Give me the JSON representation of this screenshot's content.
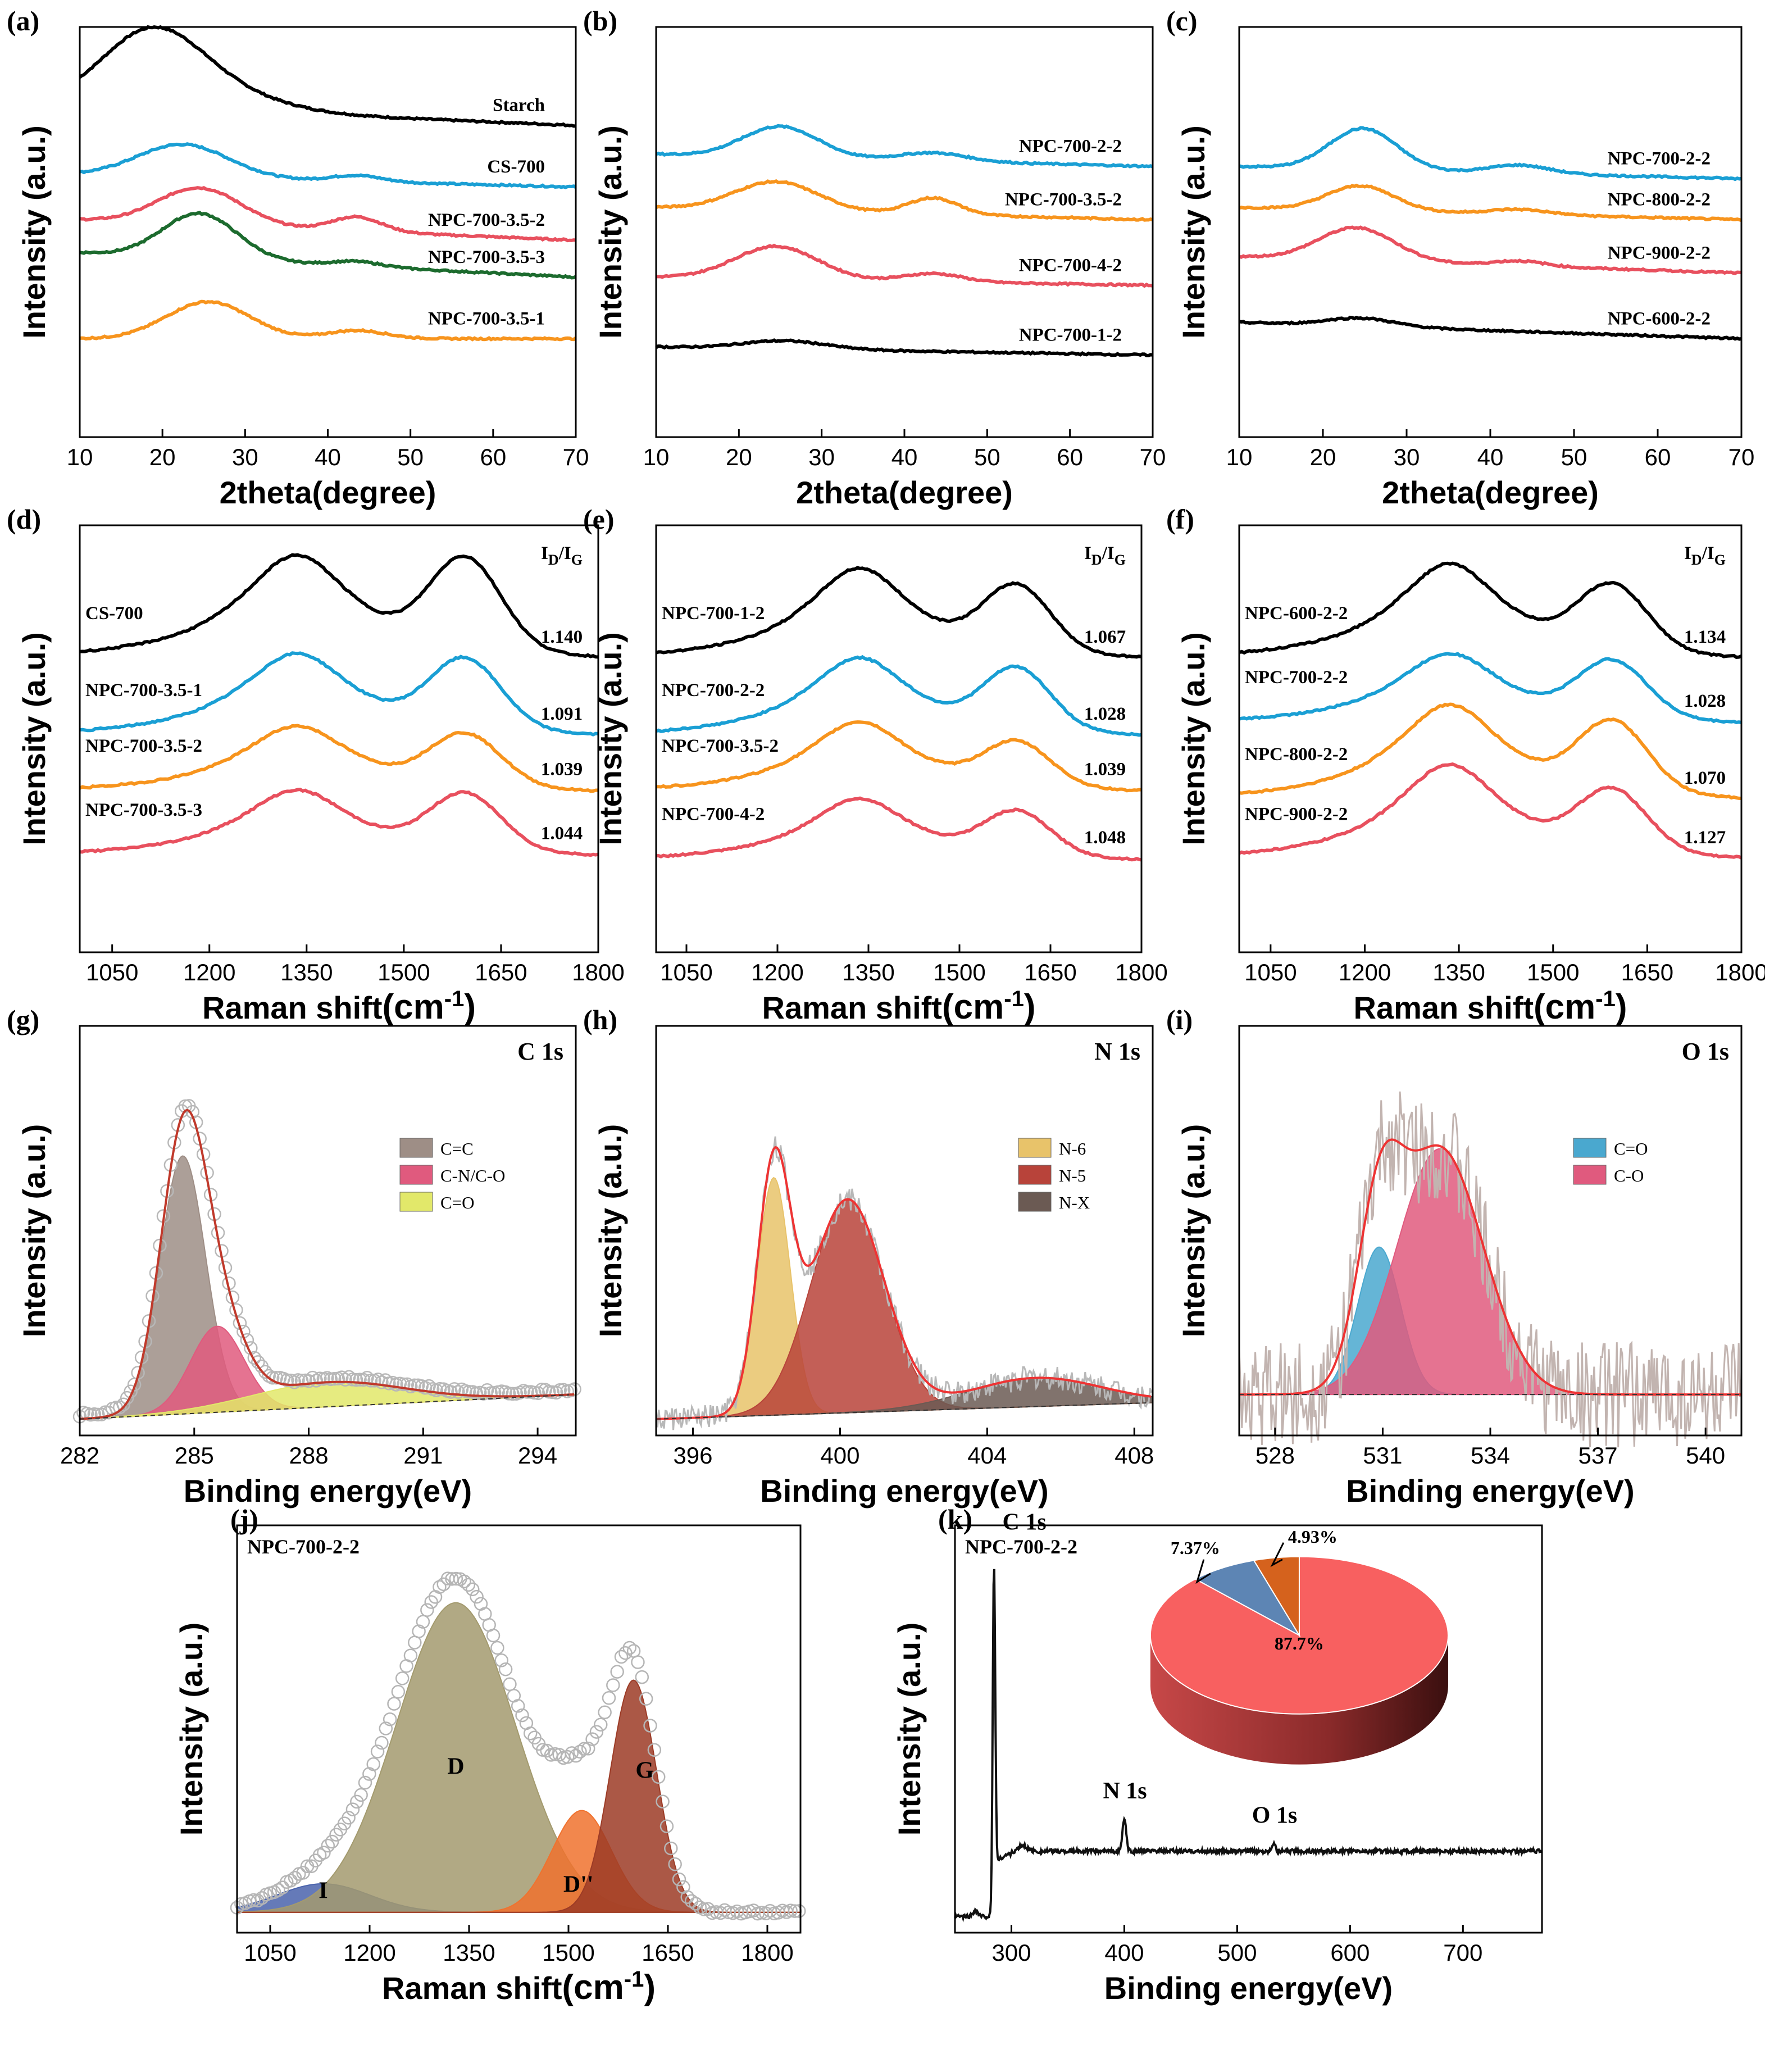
{
  "figure": {
    "panel_count": 11
  },
  "chart_data": [
    {
      "id": "a",
      "panel_label": "(a)",
      "type": "line",
      "xlabel": "2theta(degree)",
      "ylabel": "Intensity (a.u.)",
      "xlim": [
        10,
        70
      ],
      "xticks": [
        10,
        20,
        30,
        40,
        50,
        60,
        70
      ],
      "ylim": [
        0,
        1
      ],
      "series": [
        {
          "name": "Starch",
          "color": "#000000",
          "offset": 0.76,
          "peaks": [
            [
              18.5,
              0.16,
              6
            ],
            [
              25,
              0.05,
              8
            ]
          ],
          "decay": 0.05
        },
        {
          "name": "CS-700",
          "color": "#1a9fd4",
          "offset": 0.61,
          "peaks": [
            [
              22.5,
              0.08,
              5.5
            ],
            [
              43.5,
              0.015,
              3
            ]
          ],
          "decay": 0.03
        },
        {
          "name": "NPC-700-3.5-2",
          "color": "#e8505e",
          "offset": 0.48,
          "peaks": [
            [
              24.5,
              0.09,
              5
            ],
            [
              43.5,
              0.035,
              3
            ]
          ],
          "decay": 0.05
        },
        {
          "name": "NPC-700-3.5-3",
          "color": "#1c6b2e",
          "offset": 0.39,
          "peaks": [
            [
              24.5,
              0.11,
              4.5
            ],
            [
              43.5,
              0.012,
              3
            ]
          ],
          "decay": 0.06
        },
        {
          "name": "NPC-700-3.5-1",
          "color": "#f7941d",
          "offset": 0.24,
          "peaks": [
            [
              25.5,
              0.09,
              5
            ],
            [
              43.5,
              0.02,
              3.5
            ]
          ],
          "decay": 0.0
        }
      ]
    },
    {
      "id": "b",
      "panel_label": "(b)",
      "type": "line",
      "xlabel": "2theta(degree)",
      "ylabel": "Intensity (a.u.)",
      "xlim": [
        10,
        70
      ],
      "xticks": [
        10,
        20,
        30,
        40,
        50,
        60,
        70
      ],
      "ylim": [
        0,
        1
      ],
      "series": [
        {
          "name": "NPC-700-2-2",
          "color": "#1a9fd4",
          "offset": 0.66,
          "peaks": [
            [
              25,
              0.075,
              4.5
            ],
            [
              43.5,
              0.02,
              4
            ]
          ],
          "decay": 0.03
        },
        {
          "name": "NPC-700-3.5-2",
          "color": "#f7941d",
          "offset": 0.53,
          "peaks": [
            [
              24.5,
              0.07,
              5
            ],
            [
              43.5,
              0.04,
              3
            ]
          ],
          "decay": 0.03
        },
        {
          "name": "NPC-700-4-2",
          "color": "#e8505e",
          "offset": 0.37,
          "peaks": [
            [
              24.5,
              0.08,
              5
            ],
            [
              43.5,
              0.02,
              3.5
            ]
          ],
          "decay": 0.02
        },
        {
          "name": "NPC-700-1-2",
          "color": "#000000",
          "offset": 0.2,
          "peaks": [
            [
              25.5,
              0.02,
              5
            ]
          ],
          "decay": 0.02
        }
      ]
    },
    {
      "id": "c",
      "panel_label": "(c)",
      "type": "line",
      "xlabel": "2theta(degree)",
      "ylabel": "Intensity (a.u.)",
      "xlim": [
        10,
        70
      ],
      "xticks": [
        10,
        20,
        30,
        40,
        50,
        60,
        70
      ],
      "ylim": [
        0,
        1
      ],
      "series": [
        {
          "name": "NPC-700-2-2",
          "color": "#1a9fd4",
          "offset": 0.63,
          "peaks": [
            [
              24.8,
              0.1,
              4
            ],
            [
              43.5,
              0.02,
              3.5
            ]
          ],
          "decay": 0.03
        },
        {
          "name": "NPC-800-2-2",
          "color": "#f7941d",
          "offset": 0.53,
          "peaks": [
            [
              24.5,
              0.06,
              4
            ],
            [
              43.5,
              0.012,
              3.5
            ]
          ],
          "decay": 0.03
        },
        {
          "name": "NPC-900-2-2",
          "color": "#e8505e",
          "offset": 0.4,
          "peaks": [
            [
              24,
              0.08,
              4.5
            ],
            [
              43.5,
              0.012,
              3
            ]
          ],
          "decay": 0.04
        },
        {
          "name": "NPC-600-2-2",
          "color": "#000000",
          "offset": 0.24,
          "peaks": [
            [
              24.5,
              0.02,
              4
            ]
          ],
          "decay": 0.04
        }
      ]
    },
    {
      "id": "d",
      "panel_label": "(d)",
      "type": "line",
      "xlabel": "Raman shift(cm-1)",
      "ylabel": "Intensity (a.u.)",
      "xlim": [
        1000,
        1800
      ],
      "xticks": [
        1050,
        1200,
        1350,
        1500,
        1650,
        1800
      ],
      "ylim": [
        0,
        1
      ],
      "ratio_header": "ID/IG",
      "series": [
        {
          "name": "CS-700",
          "ratio": "1.140",
          "color": "#000000",
          "offset": 0.68,
          "dh": 0.25,
          "gh": 0.21
        },
        {
          "name": "NPC-700-3.5-1",
          "ratio": "1.091",
          "color": "#1a9fd4",
          "offset": 0.5,
          "dh": 0.2,
          "gh": 0.16
        },
        {
          "name": "NPC-700-3.5-2",
          "ratio": "1.039",
          "color": "#f7941d",
          "offset": 0.37,
          "dh": 0.16,
          "gh": 0.12
        },
        {
          "name": "NPC-700-3.5-3",
          "ratio": "1.044",
          "color": "#e8505e",
          "offset": 0.22,
          "dh": 0.16,
          "gh": 0.13
        }
      ]
    },
    {
      "id": "e",
      "panel_label": "(e)",
      "type": "line",
      "xlabel": "Raman shift(cm-1)",
      "ylabel": "Intensity (a.u.)",
      "xlim": [
        1000,
        1800
      ],
      "xticks": [
        1050,
        1200,
        1350,
        1500,
        1650,
        1800
      ],
      "ylim": [
        0,
        1
      ],
      "ratio_header": "ID/IG",
      "series": [
        {
          "name": "NPC-700-1-2",
          "ratio": "1.067",
          "color": "#000000",
          "offset": 0.68,
          "dh": 0.22,
          "gh": 0.15
        },
        {
          "name": "NPC-700-2-2",
          "ratio": "1.028",
          "color": "#1a9fd4",
          "offset": 0.5,
          "dh": 0.19,
          "gh": 0.14
        },
        {
          "name": "NPC-700-3.5-2",
          "ratio": "1.039",
          "color": "#f7941d",
          "offset": 0.37,
          "dh": 0.17,
          "gh": 0.1
        },
        {
          "name": "NPC-700-4-2",
          "ratio": "1.048",
          "color": "#e8505e",
          "offset": 0.21,
          "dh": 0.15,
          "gh": 0.1
        }
      ]
    },
    {
      "id": "f",
      "panel_label": "(f)",
      "type": "line",
      "xlabel": "Raman shift(cm-1)",
      "ylabel": "Intensity (a.u.)",
      "xlim": [
        1000,
        1800
      ],
      "xticks": [
        1050,
        1200,
        1350,
        1500,
        1650,
        1800
      ],
      "ylim": [
        0,
        1
      ],
      "ratio_header": "ID/IG",
      "series": [
        {
          "name": "NPC-600-2-2",
          "ratio": "1.134",
          "color": "#000000",
          "offset": 0.68,
          "dh": 0.23,
          "gh": 0.15
        },
        {
          "name": "NPC-700-2-2",
          "ratio": "1.028",
          "color": "#1a9fd4",
          "offset": 0.53,
          "dh": 0.17,
          "gh": 0.13
        },
        {
          "name": "NPC-800-2-2",
          "ratio": "1.070",
          "color": "#f7941d",
          "offset": 0.35,
          "dh": 0.23,
          "gh": 0.16
        },
        {
          "name": "NPC-900-2-2",
          "ratio": "1.127",
          "color": "#e8505e",
          "offset": 0.21,
          "dh": 0.23,
          "gh": 0.14
        }
      ]
    },
    {
      "id": "g",
      "panel_label": "(g)",
      "type": "area",
      "title": "C 1s",
      "xlabel": "Binding energy(eV)",
      "ylabel": "Intensity (a.u.)",
      "xlim": [
        282,
        295
      ],
      "xticks": [
        282,
        285,
        288,
        291,
        294
      ],
      "ylim": [
        0,
        1
      ],
      "baseline": [
        0.04,
        0.1
      ],
      "components": [
        {
          "name": "C=C",
          "color": "#9e8e86",
          "center": 284.7,
          "height": 0.63,
          "width": 0.6
        },
        {
          "name": "C-N/C-O",
          "color": "#e05a7e",
          "center": 285.6,
          "height": 0.21,
          "width": 0.7
        },
        {
          "name": "C=O",
          "color": "#e2e86a",
          "center": 288.5,
          "height": 0.06,
          "width": 2.0
        }
      ],
      "fit_color": "#c0392b",
      "data_color": "#b8b8b8"
    },
    {
      "id": "h",
      "panel_label": "(h)",
      "type": "area",
      "title": "N 1s",
      "xlabel": "Binding energy(eV)",
      "ylabel": "Intensity (a.u.)",
      "xlim": [
        395,
        408.5
      ],
      "xticks": [
        396,
        400,
        404,
        408
      ],
      "ylim": [
        0,
        1
      ],
      "baseline": [
        0.04,
        0.08
      ],
      "components": [
        {
          "name": "N-6",
          "color": "#e8c36a",
          "center": 398.2,
          "height": 0.58,
          "width": 0.45
        },
        {
          "name": "N-5",
          "color": "#b8433a",
          "center": 400.2,
          "height": 0.52,
          "width": 1.0
        },
        {
          "name": "N-X",
          "color": "#6b5a53",
          "center": 405.3,
          "height": 0.07,
          "width": 1.8
        }
      ],
      "fit_color": "#ee3333",
      "data_color": "#b8b8b8"
    },
    {
      "id": "i",
      "panel_label": "(i)",
      "type": "area",
      "title": "O 1s",
      "xlabel": "Binding energy(eV)",
      "ylabel": "Intensity (a.u.)",
      "xlim": [
        527,
        541
      ],
      "xticks": [
        528,
        531,
        534,
        537,
        540
      ],
      "ylim": [
        0,
        1
      ],
      "baseline": [
        0.1,
        0.1
      ],
      "components": [
        {
          "name": "C=O",
          "color": "#4aa8cf",
          "center": 530.9,
          "height": 0.36,
          "width": 0.6
        },
        {
          "name": "C-O",
          "color": "#e05a7e",
          "center": 532.6,
          "height": 0.6,
          "width": 1.2
        }
      ],
      "fit_color": "#ee3333",
      "data_color": "#c2b4b0"
    },
    {
      "id": "j",
      "panel_label": "(j)",
      "type": "area",
      "title": "NPC-700-2-2",
      "xlabel": "Raman shift(cm-1)",
      "ylabel": "Intensity (a.u.)",
      "xlim": [
        1000,
        1850
      ],
      "xticks": [
        1050,
        1200,
        1350,
        1500,
        1650,
        1800
      ],
      "ylim": [
        0,
        1
      ],
      "baseline": [
        0.05,
        0.05
      ],
      "components": [
        {
          "name": "I",
          "color": "#4a63ac",
          "center": 1130,
          "height": 0.07,
          "width": 70
        },
        {
          "name": "D",
          "color": "#a39a6e",
          "center": 1330,
          "height": 0.76,
          "width": 90
        },
        {
          "name": "D''",
          "color": "#f0722e",
          "center": 1520,
          "height": 0.25,
          "width": 45
        },
        {
          "name": "G",
          "color": "#9c3b26",
          "center": 1598,
          "height": 0.57,
          "width": 35
        }
      ],
      "data_color": "#b5b5b5"
    },
    {
      "id": "k",
      "panel_label": "(k)",
      "type": "line",
      "title": "NPC-700-2-2",
      "xlabel": "Binding energy(eV)",
      "ylabel": "Intensity (a.u.)",
      "xlim": [
        250,
        770
      ],
      "xticks": [
        300,
        400,
        500,
        600,
        700
      ],
      "ylim": [
        0,
        1
      ],
      "peaks": [
        {
          "label": "C 1s",
          "center": 284.6,
          "height": 0.94
        },
        {
          "label": "N 1s",
          "center": 400,
          "height": 0.28
        },
        {
          "label": "O 1s",
          "center": 532,
          "height": 0.22
        }
      ],
      "inset_pie": {
        "type": "pie",
        "slices": [
          {
            "label": "87.7%",
            "value": 87.7,
            "color": "#f86060"
          },
          {
            "label": "7.37%",
            "value": 7.37,
            "color": "#5d85b4"
          },
          {
            "label": "4.93%",
            "value": 4.93,
            "color": "#d5621d"
          }
        ]
      }
    }
  ]
}
